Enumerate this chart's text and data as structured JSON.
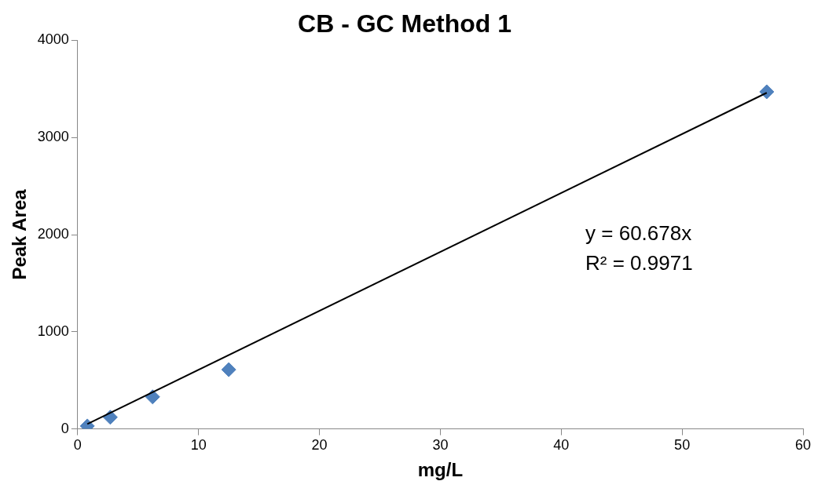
{
  "chart_data": {
    "type": "scatter",
    "title": "CB - GC Method 1",
    "xlabel": "mg/L",
    "ylabel": "Peak Area",
    "series": [
      {
        "type": "scatter",
        "color": "#4f81bd",
        "marker": "diamond",
        "x": [
          0.8,
          2.7,
          6.2,
          12.5,
          57.0
        ],
        "values": [
          30,
          120,
          330,
          610,
          3470
        ]
      },
      {
        "type": "line",
        "color": "#000000",
        "marker": "none",
        "x": [
          0.8,
          57.0
        ],
        "values": [
          50,
          3460
        ]
      }
    ],
    "xlim": [
      0,
      60
    ],
    "xticks": [
      0,
      10,
      20,
      30,
      40,
      50,
      60
    ],
    "ylim": [
      0,
      4000
    ],
    "yticks": [
      0,
      1000,
      2000,
      3000,
      4000
    ],
    "annotations": [
      "y = 60.678x",
      "R² = 0.9971"
    ],
    "grid": false,
    "legend": false
  }
}
